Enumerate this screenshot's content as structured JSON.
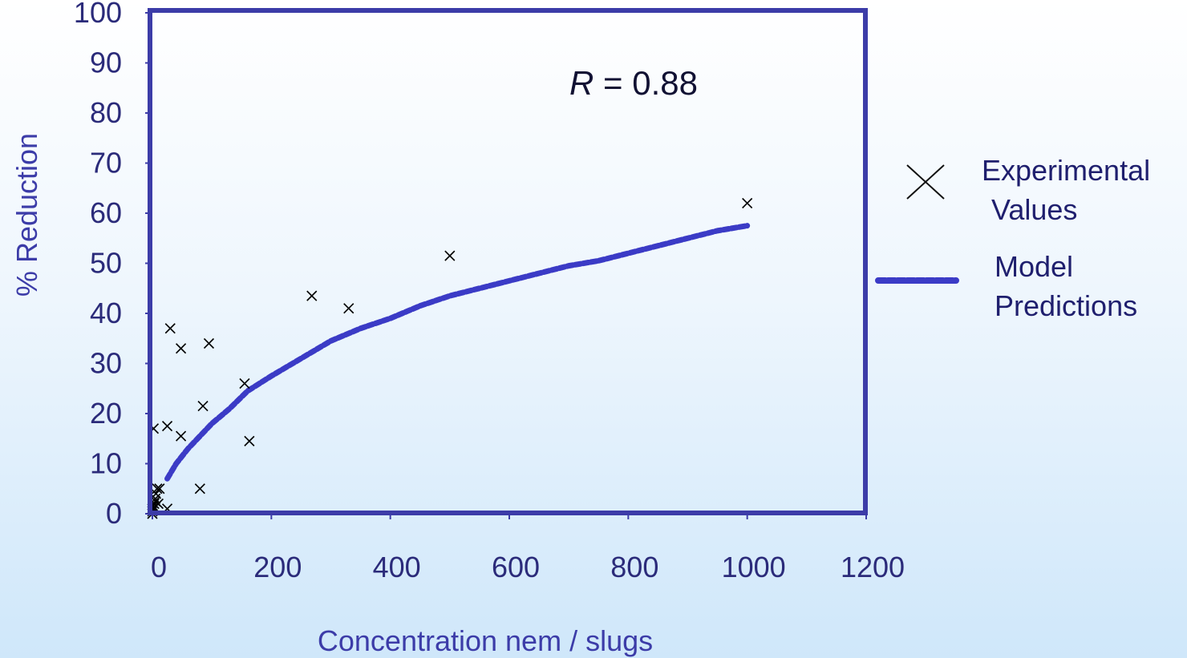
{
  "chart_data": {
    "type": "scatter",
    "title": "",
    "xlabel": "Concentration nem / slugs",
    "ylabel": "% Reduction",
    "xlim": [
      0,
      1200
    ],
    "ylim": [
      0,
      100
    ],
    "x_ticks": [
      "0",
      "200",
      "400",
      "600",
      "800",
      "1000",
      "1200"
    ],
    "y_ticks": [
      "0",
      "10",
      "20",
      "30",
      "40",
      "50",
      "60",
      "70",
      "80",
      "90",
      "100"
    ],
    "annotation": {
      "var": "R",
      "eq": " = 0.88"
    },
    "legend": {
      "position": "right",
      "entries": [
        {
          "name": [
            "Experimental",
            "Values"
          ],
          "marker": "x"
        },
        {
          "name": [
            "Model",
            "Predictions"
          ],
          "marker": "dotted-line"
        }
      ]
    },
    "series": [
      {
        "name": "Experimental Values",
        "kind": "scatter",
        "marker": "x",
        "color": "#000000",
        "points": [
          [
            0,
            0
          ],
          [
            0,
            0.5
          ],
          [
            0,
            1
          ],
          [
            1,
            1.5
          ],
          [
            2,
            1
          ],
          [
            3,
            2
          ],
          [
            5,
            3
          ],
          [
            6,
            4
          ],
          [
            5,
            2.5
          ],
          [
            8,
            5
          ],
          [
            12,
            5
          ],
          [
            10,
            2
          ],
          [
            25,
            1
          ],
          [
            2,
            17
          ],
          [
            25,
            17.5
          ],
          [
            30,
            37
          ],
          [
            48,
            33
          ],
          [
            48,
            15.5
          ],
          [
            80,
            5
          ],
          [
            85,
            21.5
          ],
          [
            95,
            34
          ],
          [
            155,
            26
          ],
          [
            163,
            14.5
          ],
          [
            268,
            43.5
          ],
          [
            330,
            41
          ],
          [
            500,
            51.5
          ],
          [
            1000,
            62
          ]
        ]
      },
      {
        "name": "Model Predictions",
        "kind": "line",
        "style": "dotted",
        "color": "#3b3bc6",
        "points": [
          [
            25,
            7
          ],
          [
            40,
            10
          ],
          [
            60,
            13
          ],
          [
            80,
            15.5
          ],
          [
            100,
            18
          ],
          [
            130,
            21
          ],
          [
            160,
            24.5
          ],
          [
            200,
            27.5
          ],
          [
            250,
            31
          ],
          [
            300,
            34.5
          ],
          [
            350,
            37
          ],
          [
            400,
            39
          ],
          [
            450,
            41.5
          ],
          [
            500,
            43.5
          ],
          [
            550,
            45
          ],
          [
            600,
            46.5
          ],
          [
            650,
            48
          ],
          [
            700,
            49.5
          ],
          [
            750,
            50.5
          ],
          [
            800,
            52
          ],
          [
            850,
            53.5
          ],
          [
            900,
            55
          ],
          [
            950,
            56.5
          ],
          [
            1000,
            57.5
          ]
        ]
      }
    ]
  }
}
